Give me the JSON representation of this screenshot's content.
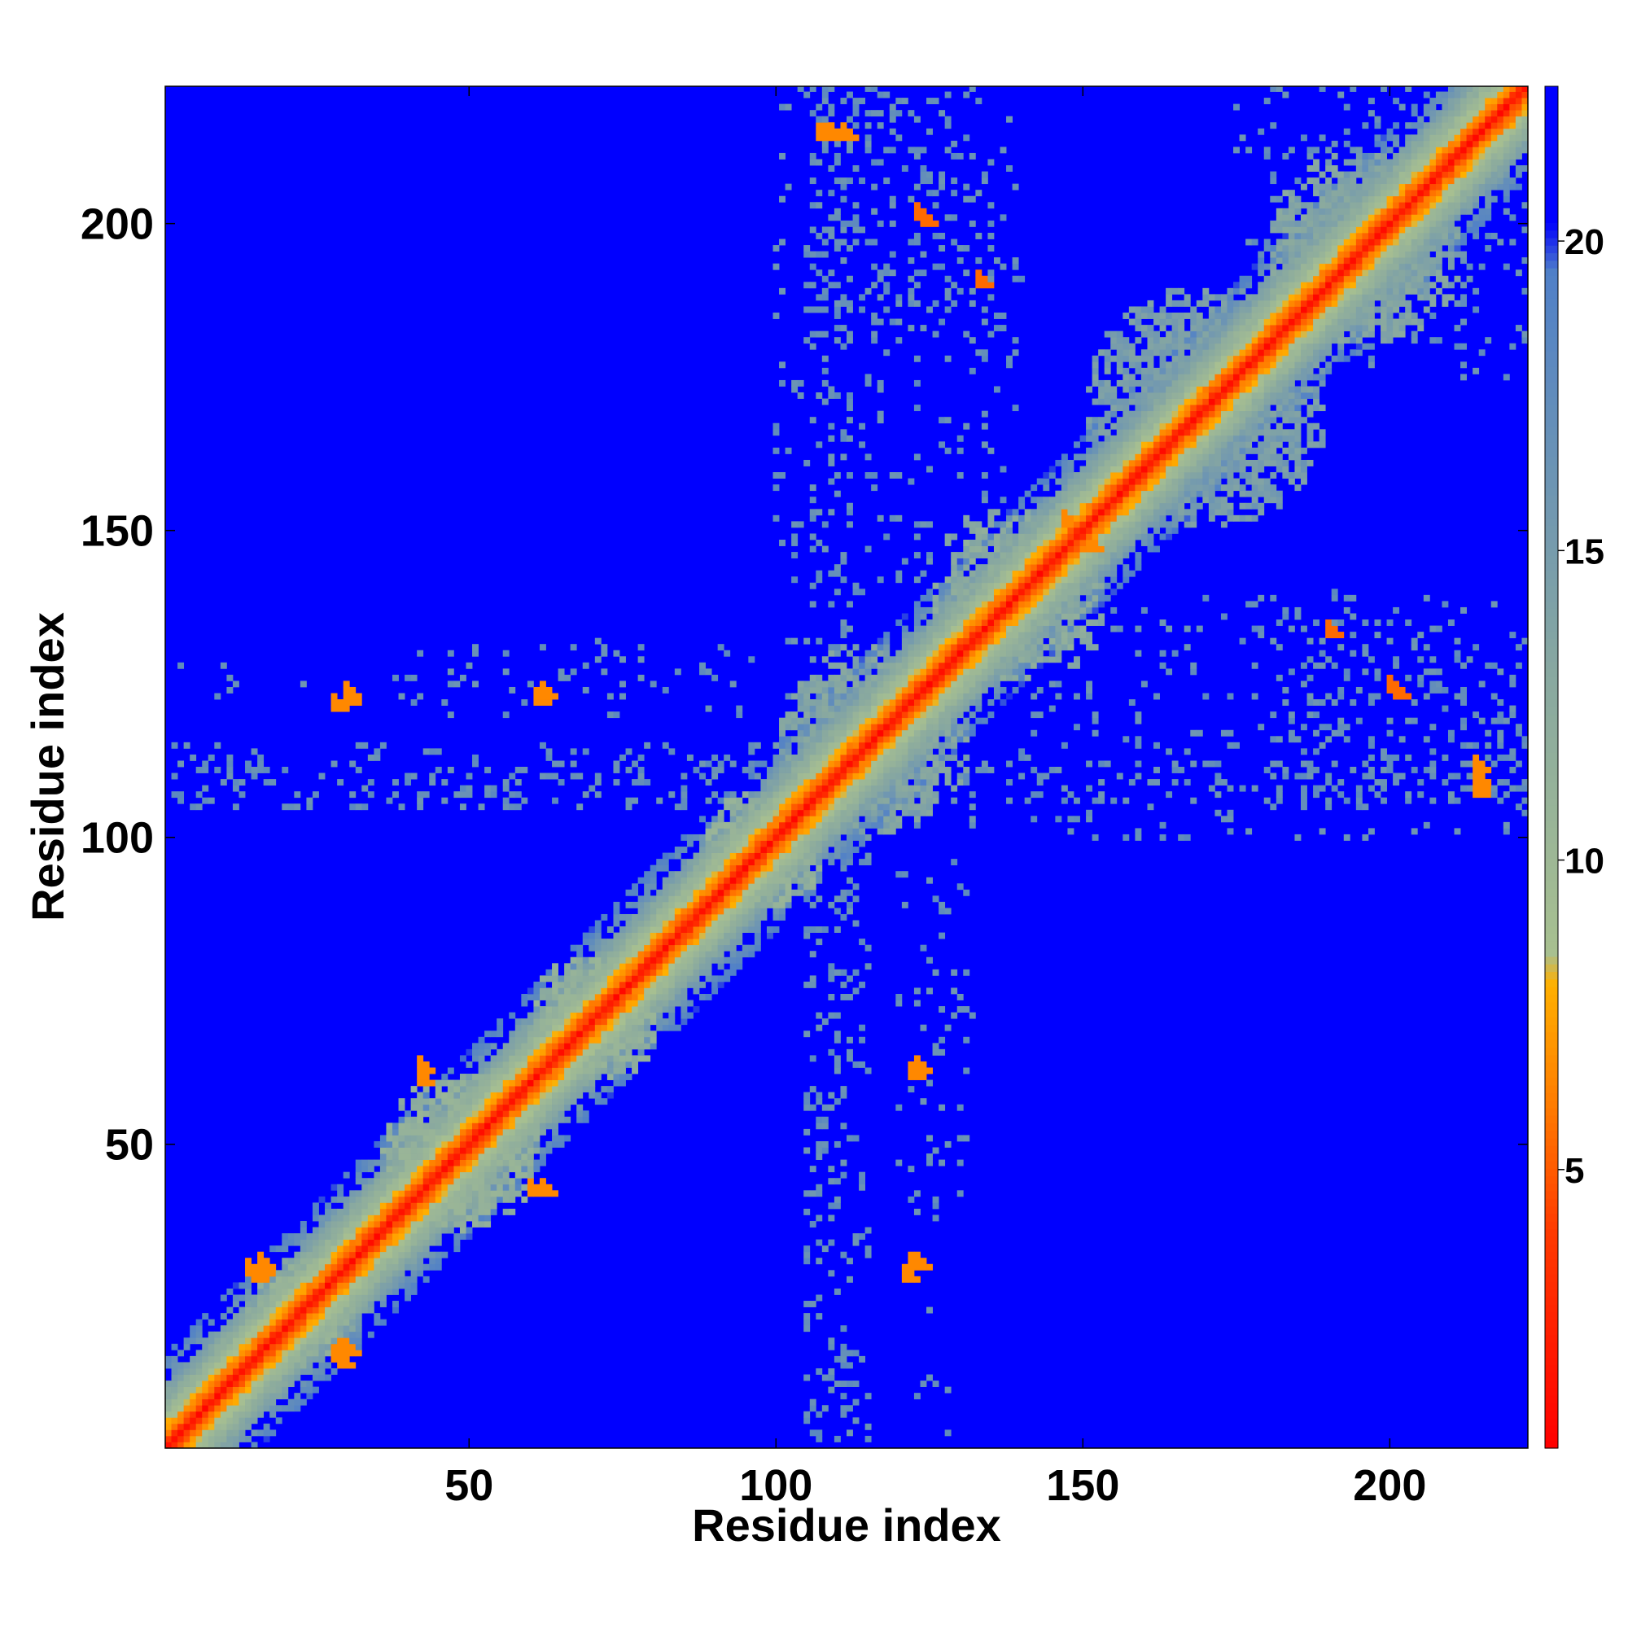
{
  "chart_data": {
    "type": "heatmap",
    "title": "",
    "xlabel": "Residue index",
    "ylabel": "Residue index",
    "n_residues": 222,
    "xlim": [
      1,
      222
    ],
    "ylim": [
      1,
      222
    ],
    "x_ticks": [
      50,
      100,
      150,
      200
    ],
    "y_ticks": [
      50,
      100,
      150,
      200
    ],
    "colorbar": {
      "ticks": [
        5,
        10,
        15,
        20
      ],
      "range": [
        0.5,
        22.5
      ],
      "color_stops": [
        {
          "value": 0.5,
          "color": "#ff0000"
        },
        {
          "value": 4.0,
          "color": "#ff3a00"
        },
        {
          "value": 6.0,
          "color": "#ff7a00"
        },
        {
          "value": 8.0,
          "color": "#ffb000"
        },
        {
          "value": 8.5,
          "color": "#a8c090"
        },
        {
          "value": 13.0,
          "color": "#88a8a0"
        },
        {
          "value": 19.5,
          "color": "#5080c8"
        },
        {
          "value": 20.3,
          "color": "#0000ff"
        },
        {
          "value": 22.5,
          "color": "#0000ff"
        }
      ]
    },
    "background_value": 22,
    "diagonal_band": {
      "profile_by_offset": [
        1.5,
        3.8,
        5.6,
        6.8,
        8.3,
        9.5,
        10.5,
        11.5,
        12.5,
        13.5,
        14.5,
        15.5,
        16.5,
        17.5,
        18.5,
        19.2
      ],
      "note": "distance as a function of |i-j|"
    },
    "contact_regions": [
      {
        "x": [
          1,
          12
        ],
        "y": [
          1,
          12
        ],
        "value": 13
      },
      {
        "x": [
          14,
          32
        ],
        "y": [
          14,
          32
        ],
        "value": 12
      },
      {
        "x": [
          36,
          62
        ],
        "y": [
          36,
          62
        ],
        "value": 12
      },
      {
        "x": [
          60,
          80
        ],
        "y": [
          60,
          82
        ],
        "value": 12
      },
      {
        "x": [
          88,
          108
        ],
        "y": [
          88,
          108
        ],
        "value": 12
      },
      {
        "x": [
          100,
          130
        ],
        "y": [
          100,
          132
        ],
        "value": 14
      },
      {
        "x": [
          125,
          150
        ],
        "y": [
          125,
          155
        ],
        "value": 13
      },
      {
        "x": [
          150,
          190
        ],
        "y": [
          150,
          190
        ],
        "value": 15
      },
      {
        "x": [
          180,
          210
        ],
        "y": [
          180,
          212
        ],
        "value": 14
      }
    ],
    "scattered_contacts": [
      {
        "x": [
          105,
          115
        ],
        "y": [
          2,
          120
        ],
        "density": 0.12,
        "value": 17
      },
      {
        "x": [
          120,
          132
        ],
        "y": [
          40,
          125
        ],
        "density": 0.07,
        "value": 17
      },
      {
        "x": [
          2,
          222
        ],
        "y": [
          106,
          112
        ],
        "density": 0.12,
        "value": 17
      },
      {
        "x": [
          2,
          80
        ],
        "y": [
          122,
          128
        ],
        "density": 0.05,
        "value": 17
      },
      {
        "x": [
          105,
          135
        ],
        "y": [
          180,
          222
        ],
        "density": 0.1,
        "value": 17
      },
      {
        "x": [
          140,
          222
        ],
        "y": [
          100,
          140
        ],
        "density": 0.07,
        "value": 17
      },
      {
        "x": [
          195,
          222
        ],
        "y": [
          175,
          222
        ],
        "density": 0.09,
        "value": 17
      }
    ],
    "close_contacts": [
      {
        "x": 14,
        "y": 29,
        "value": 6.5
      },
      {
        "x": 16,
        "y": 29,
        "value": 6.5
      },
      {
        "x": 28,
        "y": 15,
        "value": 6.5
      },
      {
        "x": 30,
        "y": 16,
        "value": 6.5
      },
      {
        "x": 42,
        "y": 60,
        "value": 6.5
      },
      {
        "x": 42,
        "y": 62,
        "value": 6.5
      },
      {
        "x": 60,
        "y": 42,
        "value": 6.5
      },
      {
        "x": 62,
        "y": 42,
        "value": 6.5
      },
      {
        "x": 28,
        "y": 121,
        "value": 6.5
      },
      {
        "x": 30,
        "y": 122,
        "value": 6.5
      },
      {
        "x": 61,
        "y": 122,
        "value": 6.5
      },
      {
        "x": 109,
        "y": 214,
        "value": 6.5
      },
      {
        "x": 107,
        "y": 214,
        "value": 6.5
      },
      {
        "x": 121,
        "y": 28,
        "value": 6.5
      },
      {
        "x": 123,
        "y": 62,
        "value": 6.5
      },
      {
        "x": 123,
        "y": 30,
        "value": 6.5
      },
      {
        "x": 124,
        "y": 200,
        "value": 5.5
      },
      {
        "x": 133,
        "y": 190,
        "value": 5.5
      },
      {
        "x": 147,
        "y": 151,
        "value": 6.5
      },
      {
        "x": 201,
        "y": 123,
        "value": 5.5
      },
      {
        "x": 214,
        "y": 108,
        "value": 6.5
      },
      {
        "x": 214,
        "y": 111,
        "value": 6.5
      }
    ]
  }
}
